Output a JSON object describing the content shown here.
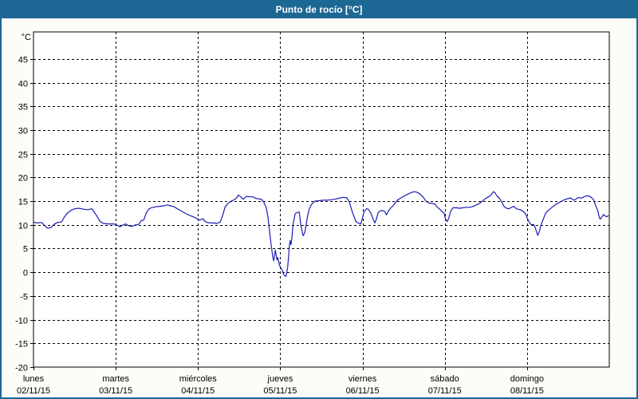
{
  "window": {
    "title": "Punto de rocío [°C]"
  },
  "colors": {
    "titlebar_bg": "#1d6795",
    "title_text": "#ffffff",
    "window_bg": "#fcfdf8",
    "plot_bg": "#ffffff",
    "grid": "#000000",
    "axis": "#000000",
    "line": "#1c1cb8"
  },
  "chart_data": {
    "type": "line",
    "title": "Punto de rocío [°C]",
    "xlabel": "",
    "ylabel": "°C",
    "ylim": [
      -20,
      50.7
    ],
    "ytick_step": 5,
    "yticks": [
      45,
      40,
      35,
      30,
      25,
      20,
      15,
      10,
      5,
      0,
      -5,
      -10,
      -15,
      -20
    ],
    "grid": true,
    "grid_style": "dashed",
    "legend_position": "none",
    "categories": [
      {
        "name": "lunes",
        "date": "02/11/15"
      },
      {
        "name": "martes",
        "date": "03/11/15"
      },
      {
        "name": "miércoles",
        "date": "04/11/15"
      },
      {
        "name": "jueves",
        "date": "05/11/15"
      },
      {
        "name": "viernes",
        "date": "06/11/15"
      },
      {
        "name": "sábado",
        "date": "07/11/15"
      },
      {
        "name": "domingo",
        "date": "08/11/15"
      }
    ],
    "x_unit": "days_from_monday",
    "series": [
      {
        "name": "Punto de rocío",
        "color": "#1c1cb8",
        "points": [
          [
            0,
            10.6
          ],
          [
            0.04,
            10.4
          ],
          [
            0.1,
            10.5
          ],
          [
            0.15,
            9.6
          ],
          [
            0.17,
            9.3
          ],
          [
            0.21,
            9.4
          ],
          [
            0.25,
            10.1
          ],
          [
            0.29,
            10.5
          ],
          [
            0.34,
            10.6
          ],
          [
            0.38,
            11.8
          ],
          [
            0.42,
            12.6
          ],
          [
            0.46,
            13.1
          ],
          [
            0.5,
            13.4
          ],
          [
            0.55,
            13.5
          ],
          [
            0.61,
            13.3
          ],
          [
            0.66,
            13.2
          ],
          [
            0.71,
            13.4
          ],
          [
            0.75,
            12.4
          ],
          [
            0.79,
            11.3
          ],
          [
            0.81,
            10.7
          ],
          [
            0.85,
            10.3
          ],
          [
            0.91,
            10.2
          ],
          [
            0.98,
            10.2
          ],
          [
            1.02,
            9.9
          ],
          [
            1.05,
            9.6
          ],
          [
            1.09,
            10.0
          ],
          [
            1.12,
            10.2
          ],
          [
            1.16,
            9.8
          ],
          [
            1.2,
            9.7
          ],
          [
            1.24,
            10.0
          ],
          [
            1.28,
            10.1
          ],
          [
            1.31,
            10.9
          ],
          [
            1.34,
            11.0
          ],
          [
            1.37,
            12.5
          ],
          [
            1.4,
            13.3
          ],
          [
            1.43,
            13.6
          ],
          [
            1.48,
            13.8
          ],
          [
            1.53,
            13.9
          ],
          [
            1.58,
            14.0
          ],
          [
            1.63,
            14.2
          ],
          [
            1.67,
            14.0
          ],
          [
            1.71,
            13.8
          ],
          [
            1.75,
            13.4
          ],
          [
            1.8,
            12.9
          ],
          [
            1.85,
            12.4
          ],
          [
            1.9,
            12.0
          ],
          [
            1.94,
            11.7
          ],
          [
            1.98,
            11.4
          ],
          [
            2.02,
            11.0
          ],
          [
            2.06,
            11.3
          ],
          [
            2.08,
            10.8
          ],
          [
            2.11,
            10.5
          ],
          [
            2.15,
            10.4
          ],
          [
            2.19,
            10.4
          ],
          [
            2.23,
            10.3
          ],
          [
            2.27,
            10.6
          ],
          [
            2.3,
            12.0
          ],
          [
            2.33,
            13.8
          ],
          [
            2.36,
            14.4
          ],
          [
            2.39,
            14.9
          ],
          [
            2.43,
            15.2
          ],
          [
            2.47,
            15.7
          ],
          [
            2.49,
            16.3
          ],
          [
            2.52,
            15.9
          ],
          [
            2.55,
            15.4
          ],
          [
            2.59,
            16.0
          ],
          [
            2.63,
            15.9
          ],
          [
            2.67,
            15.9
          ],
          [
            2.7,
            15.6
          ],
          [
            2.73,
            15.5
          ],
          [
            2.77,
            15.4
          ],
          [
            2.8,
            14.8
          ],
          [
            2.83,
            13.6
          ],
          [
            2.85,
            11.7
          ],
          [
            2.87,
            8.6
          ],
          [
            2.89,
            5.6
          ],
          [
            2.91,
            3.2
          ],
          [
            2.92,
            2.4
          ],
          [
            2.94,
            4.7
          ],
          [
            2.96,
            2.6
          ],
          [
            2.97,
            3.1
          ],
          [
            2.99,
            1.5
          ],
          [
            3.01,
            0.8
          ],
          [
            3.03,
            0.3
          ],
          [
            3.04,
            -0.4
          ],
          [
            3.06,
            -0.8
          ],
          [
            3.07,
            -0.9
          ],
          [
            3.09,
            1.0
          ],
          [
            3.1,
            3.0
          ],
          [
            3.11,
            5.5
          ],
          [
            3.12,
            6.7
          ],
          [
            3.13,
            5.8
          ],
          [
            3.14,
            7.0
          ],
          [
            3.15,
            9.0
          ],
          [
            3.16,
            10.5
          ],
          [
            3.18,
            12.3
          ],
          [
            3.2,
            12.6
          ],
          [
            3.23,
            12.7
          ],
          [
            3.25,
            10.0
          ],
          [
            3.27,
            8.2
          ],
          [
            3.28,
            7.7
          ],
          [
            3.3,
            8.5
          ],
          [
            3.33,
            11.7
          ],
          [
            3.35,
            13.2
          ],
          [
            3.38,
            14.3
          ],
          [
            3.42,
            15.0
          ],
          [
            3.47,
            15.1
          ],
          [
            3.52,
            15.2
          ],
          [
            3.57,
            15.2
          ],
          [
            3.62,
            15.3
          ],
          [
            3.66,
            15.4
          ],
          [
            3.71,
            15.6
          ],
          [
            3.76,
            15.8
          ],
          [
            3.81,
            15.7
          ],
          [
            3.84,
            14.8
          ],
          [
            3.88,
            12.5
          ],
          [
            3.92,
            10.7
          ],
          [
            3.96,
            10.3
          ],
          [
            3.98,
            10.2
          ],
          [
            4.0,
            11.5
          ],
          [
            4.02,
            12.8
          ],
          [
            4.05,
            13.4
          ],
          [
            4.07,
            13.3
          ],
          [
            4.1,
            12.5
          ],
          [
            4.13,
            11.2
          ],
          [
            4.15,
            10.4
          ],
          [
            4.17,
            11.3
          ],
          [
            4.19,
            12.6
          ],
          [
            4.22,
            13.0
          ],
          [
            4.25,
            13.0
          ],
          [
            4.27,
            12.8
          ],
          [
            4.29,
            12.1
          ],
          [
            4.31,
            12.8
          ],
          [
            4.34,
            13.5
          ],
          [
            4.37,
            14.0
          ],
          [
            4.4,
            14.7
          ],
          [
            4.43,
            15.3
          ],
          [
            4.47,
            15.7
          ],
          [
            4.51,
            16.1
          ],
          [
            4.55,
            16.5
          ],
          [
            4.59,
            16.8
          ],
          [
            4.63,
            17.0
          ],
          [
            4.66,
            16.9
          ],
          [
            4.7,
            16.5
          ],
          [
            4.74,
            15.8
          ],
          [
            4.77,
            15.0
          ],
          [
            4.81,
            14.6
          ],
          [
            4.85,
            14.5
          ],
          [
            4.88,
            14.4
          ],
          [
            4.91,
            13.7
          ],
          [
            4.94,
            13.3
          ],
          [
            4.96,
            12.9
          ],
          [
            4.99,
            12.5
          ],
          [
            5.01,
            11.2
          ],
          [
            5.03,
            10.7
          ],
          [
            5.05,
            11.5
          ],
          [
            5.07,
            12.8
          ],
          [
            5.1,
            13.6
          ],
          [
            5.14,
            13.6
          ],
          [
            5.18,
            13.5
          ],
          [
            5.22,
            13.6
          ],
          [
            5.26,
            13.7
          ],
          [
            5.29,
            13.7
          ],
          [
            5.33,
            13.8
          ],
          [
            5.37,
            14.1
          ],
          [
            5.41,
            14.4
          ],
          [
            5.45,
            14.9
          ],
          [
            5.49,
            15.5
          ],
          [
            5.52,
            15.8
          ],
          [
            5.55,
            16.1
          ],
          [
            5.57,
            16.5
          ],
          [
            5.59,
            17.0
          ],
          [
            5.61,
            16.8
          ],
          [
            5.63,
            16.2
          ],
          [
            5.66,
            15.7
          ],
          [
            5.69,
            14.9
          ],
          [
            5.72,
            13.9
          ],
          [
            5.75,
            13.5
          ],
          [
            5.78,
            13.4
          ],
          [
            5.81,
            13.7
          ],
          [
            5.84,
            13.9
          ],
          [
            5.87,
            13.4
          ],
          [
            5.89,
            13.3
          ],
          [
            5.92,
            13.2
          ],
          [
            5.95,
            12.9
          ],
          [
            5.98,
            12.4
          ],
          [
            6.0,
            11.5
          ],
          [
            6.02,
            10.8
          ],
          [
            6.04,
            10.2
          ],
          [
            6.06,
            10.0
          ],
          [
            6.08,
            10.1
          ],
          [
            6.1,
            9.4
          ],
          [
            6.12,
            8.3
          ],
          [
            6.13,
            7.8
          ],
          [
            6.15,
            8.6
          ],
          [
            6.17,
            10.0
          ],
          [
            6.2,
            11.3
          ],
          [
            6.22,
            12.2
          ],
          [
            6.24,
            12.8
          ],
          [
            6.27,
            13.2
          ],
          [
            6.31,
            13.8
          ],
          [
            6.35,
            14.3
          ],
          [
            6.39,
            14.7
          ],
          [
            6.43,
            15.1
          ],
          [
            6.47,
            15.4
          ],
          [
            6.51,
            15.6
          ],
          [
            6.53,
            15.7
          ],
          [
            6.55,
            15.4
          ],
          [
            6.57,
            15.2
          ],
          [
            6.6,
            15.5
          ],
          [
            6.63,
            15.8
          ],
          [
            6.66,
            15.6
          ],
          [
            6.69,
            15.9
          ],
          [
            6.72,
            16.1
          ],
          [
            6.75,
            16.1
          ],
          [
            6.78,
            15.8
          ],
          [
            6.81,
            15.3
          ],
          [
            6.83,
            14.2
          ],
          [
            6.86,
            13.0
          ],
          [
            6.88,
            11.5
          ],
          [
            6.89,
            11.2
          ],
          [
            6.91,
            11.7
          ],
          [
            6.93,
            12.2
          ],
          [
            6.95,
            11.9
          ],
          [
            6.97,
            11.7
          ],
          [
            6.99,
            12.0
          ]
        ]
      }
    ]
  }
}
